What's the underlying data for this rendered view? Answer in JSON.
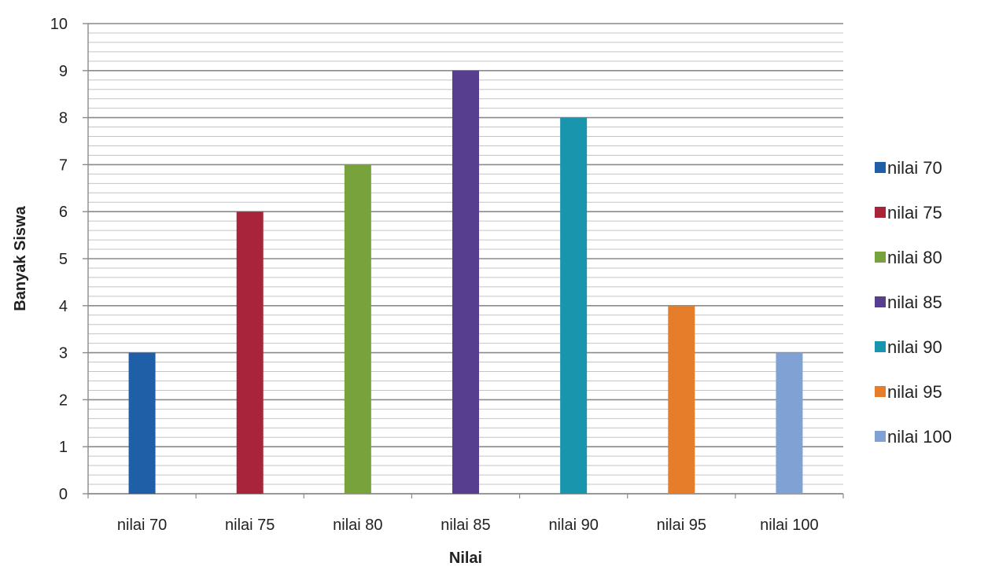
{
  "chart_data": {
    "type": "bar",
    "title": "",
    "xlabel": "Nilai",
    "ylabel": "Banyak Siswa",
    "ylim": [
      0,
      10
    ],
    "yticks": [
      0,
      1,
      2,
      3,
      4,
      5,
      6,
      7,
      8,
      9,
      10
    ],
    "minor_gridlines_per_unit": 5,
    "grid": true,
    "legend_position": "right",
    "categories": [
      "nilai 70",
      "nilai 75",
      "nilai 80",
      "nilai 85",
      "nilai 90",
      "nilai 95",
      "nilai 100"
    ],
    "values": [
      3,
      6,
      7,
      9,
      8,
      4,
      3
    ],
    "colors": [
      "#1f5fa8",
      "#a8243a",
      "#77a23c",
      "#583e8f",
      "#1a95ae",
      "#e67d2a",
      "#7fa1d4"
    ],
    "legend": [
      "nilai 70",
      "nilai 75",
      "nilai 80",
      "nilai 85",
      "nilai 90",
      "nilai 95",
      "nilai 100"
    ]
  }
}
